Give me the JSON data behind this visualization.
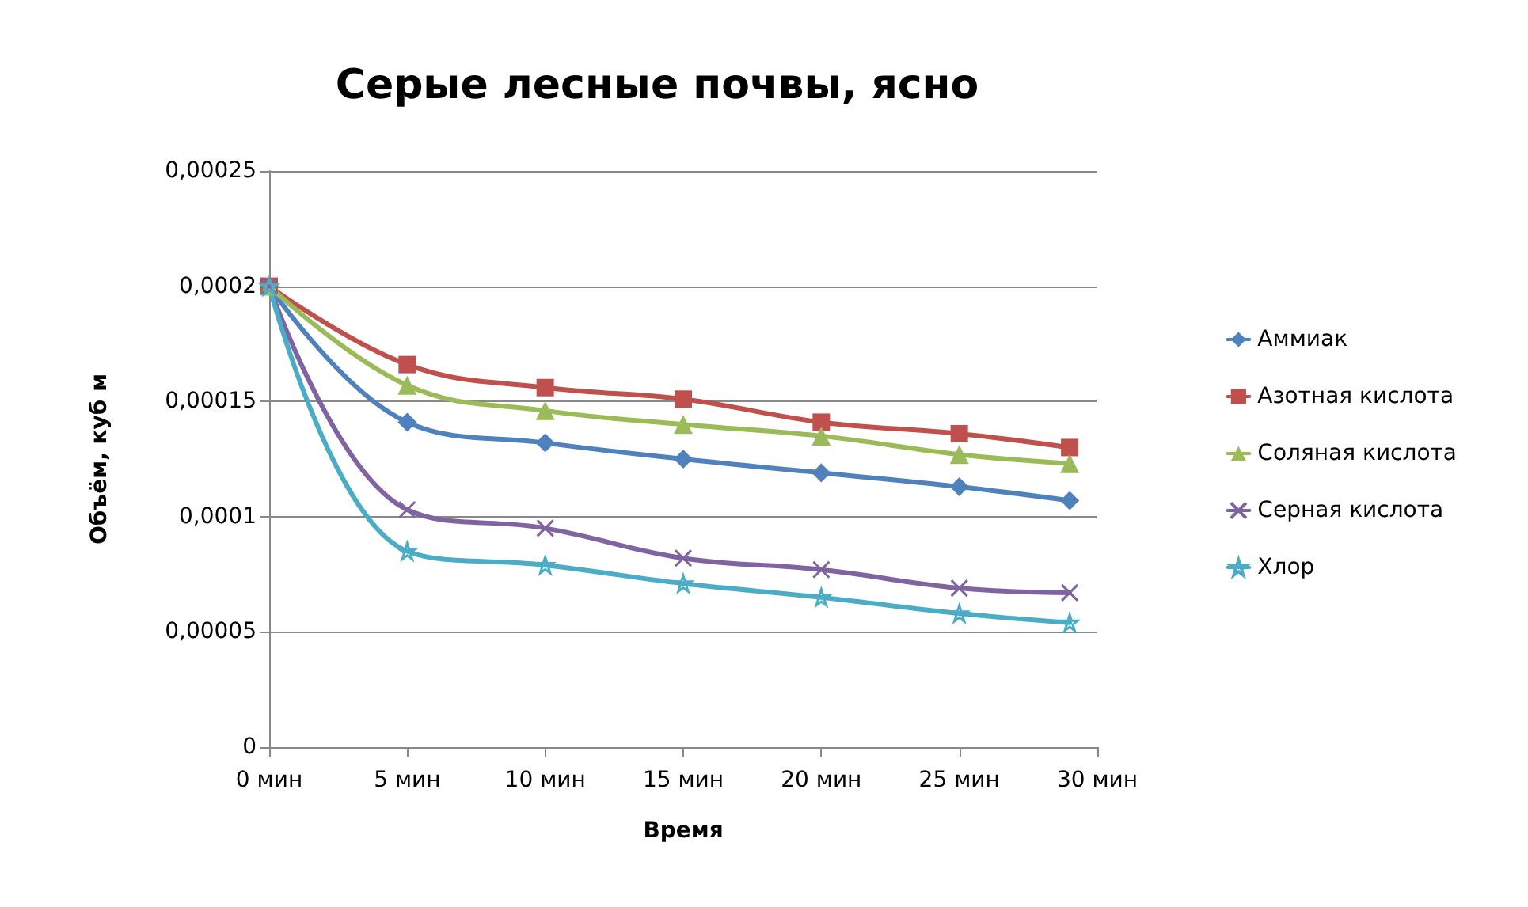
{
  "chart_data": {
    "type": "line",
    "title": "Серые лесные почвы, ясно",
    "xlabel": "Время",
    "ylabel": "Объём, куб м",
    "x": [
      0,
      5,
      10,
      15,
      20,
      25,
      29
    ],
    "series": [
      {
        "name": "Аммиак",
        "color": "#4f81bd",
        "marker": "diamond",
        "values": [
          0.0002,
          0.000141,
          0.000132,
          0.000125,
          0.000119,
          0.000113,
          0.000107
        ]
      },
      {
        "name": "Азотная кислота",
        "color": "#c0504d",
        "marker": "square",
        "values": [
          0.0002,
          0.000166,
          0.000156,
          0.000151,
          0.000141,
          0.000136,
          0.00013
        ]
      },
      {
        "name": "Соляная кислота",
        "color": "#9bbb59",
        "marker": "triangle",
        "values": [
          0.0002,
          0.000157,
          0.000146,
          0.00014,
          0.000135,
          0.000127,
          0.000123
        ]
      },
      {
        "name": "Серная кислота",
        "color": "#8064a2",
        "marker": "cross",
        "values": [
          0.0002,
          0.000103,
          9.5e-05,
          8.2e-05,
          7.7e-05,
          6.9e-05,
          6.7e-05
        ]
      },
      {
        "name": "Хлор",
        "color": "#4bacc6",
        "marker": "star",
        "values": [
          0.0002,
          8.5e-05,
          7.9e-05,
          7.1e-05,
          6.5e-05,
          5.8e-05,
          5.4e-05
        ]
      }
    ],
    "xlim": [
      0,
      30
    ],
    "xticks": [
      {
        "value": 0,
        "label": "0 мин"
      },
      {
        "value": 5,
        "label": "5 мин"
      },
      {
        "value": 10,
        "label": "10 мин"
      },
      {
        "value": 15,
        "label": "15 мин"
      },
      {
        "value": 20,
        "label": "20 мин"
      },
      {
        "value": 25,
        "label": "25 мин"
      },
      {
        "value": 30,
        "label": "30 мин"
      }
    ],
    "ylim": [
      0,
      0.00025
    ],
    "yticks": [
      {
        "value": 0,
        "label": "0"
      },
      {
        "value": 5e-05,
        "label": "0,00005"
      },
      {
        "value": 0.0001,
        "label": "0,0001"
      },
      {
        "value": 0.00015,
        "label": "0,00015"
      },
      {
        "value": 0.0002,
        "label": "0,0002"
      },
      {
        "value": 0.00025,
        "label": "0,00025"
      }
    ],
    "grid": "y",
    "legend": "right",
    "line_style": "solid"
  }
}
